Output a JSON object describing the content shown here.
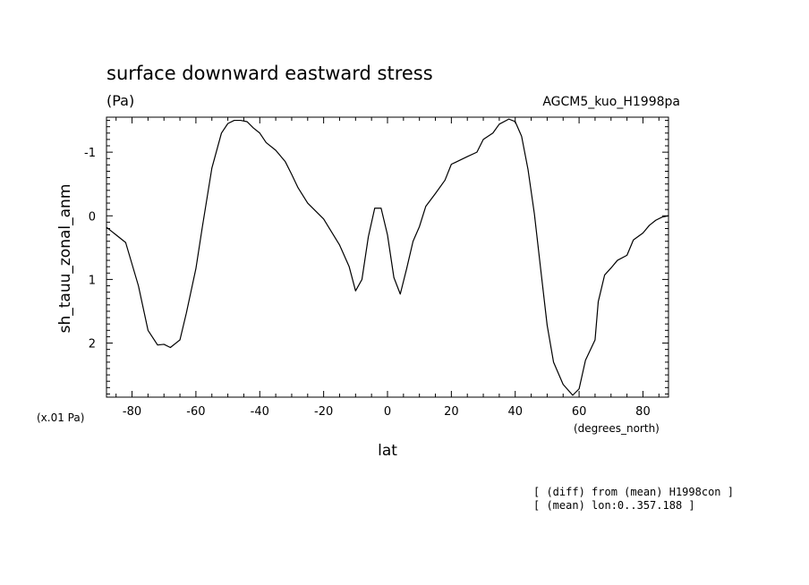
{
  "chart_data": {
    "type": "line",
    "title": "surface downward eastward stress",
    "units": "(Pa)",
    "dataset_label": "AGCM5_kuo_H1998pa",
    "ylabel": "sh_tauu_zonal_anm",
    "ylabel_multiplier": "(x.01 Pa)",
    "xlabel": "lat",
    "xlabel_units": "(degrees_north)",
    "notes": [
      "[ (diff) from (mean) H1998con ]",
      "[ (mean) lon:0..357.188 ]"
    ],
    "xlim": [
      -88,
      88
    ],
    "ylim": [
      2.85,
      -1.55
    ],
    "y_inverted": true,
    "x_ticks": [
      -80,
      -60,
      -40,
      -20,
      0,
      20,
      40,
      60,
      80
    ],
    "y_ticks": [
      -1,
      0,
      1,
      2
    ],
    "x_tick_labels": [
      "-80",
      "-60",
      "-40",
      "-20",
      "0",
      "20",
      "40",
      "60",
      "80"
    ],
    "y_tick_labels": [
      "-1",
      "0",
      "1",
      "2"
    ],
    "grid": false,
    "series": [
      {
        "x": [
          -88,
          -82,
          -78,
          -75,
          -72,
          -70,
          -68,
          -65,
          -63,
          -60,
          -58,
          -55,
          -52,
          -50,
          -48,
          -46,
          -44,
          -42,
          -40,
          -38,
          -35,
          -32,
          -30,
          -28,
          -25,
          -20,
          -15,
          -12,
          -10,
          -8,
          -6,
          -4,
          -2,
          0,
          2,
          4,
          6,
          8,
          10,
          12,
          15,
          18,
          20,
          25,
          28,
          30,
          33,
          35,
          38,
          40,
          42,
          44,
          46,
          48,
          50,
          52,
          55,
          58,
          60,
          62,
          65,
          66,
          68,
          70,
          72,
          75,
          77,
          80,
          82,
          84,
          86,
          88
        ],
        "y": [
          0.18,
          0.42,
          1.1,
          1.8,
          2.03,
          2.02,
          2.07,
          1.95,
          1.53,
          0.83,
          0.18,
          -0.75,
          -1.3,
          -1.45,
          -1.5,
          -1.5,
          -1.48,
          -1.38,
          -1.3,
          -1.15,
          -1.03,
          -0.85,
          -0.65,
          -0.44,
          -0.2,
          0.05,
          0.46,
          0.8,
          1.18,
          1.0,
          0.33,
          -0.12,
          -0.12,
          0.3,
          0.97,
          1.23,
          0.83,
          0.4,
          0.17,
          -0.15,
          -0.35,
          -0.56,
          -0.81,
          -0.93,
          -1.0,
          -1.2,
          -1.3,
          -1.44,
          -1.52,
          -1.48,
          -1.25,
          -0.73,
          -0.03,
          0.85,
          1.72,
          2.3,
          2.65,
          2.82,
          2.72,
          2.27,
          1.95,
          1.35,
          0.93,
          0.82,
          0.7,
          0.62,
          0.38,
          0.27,
          0.15,
          0.07,
          0.02,
          0.0
        ]
      }
    ]
  }
}
